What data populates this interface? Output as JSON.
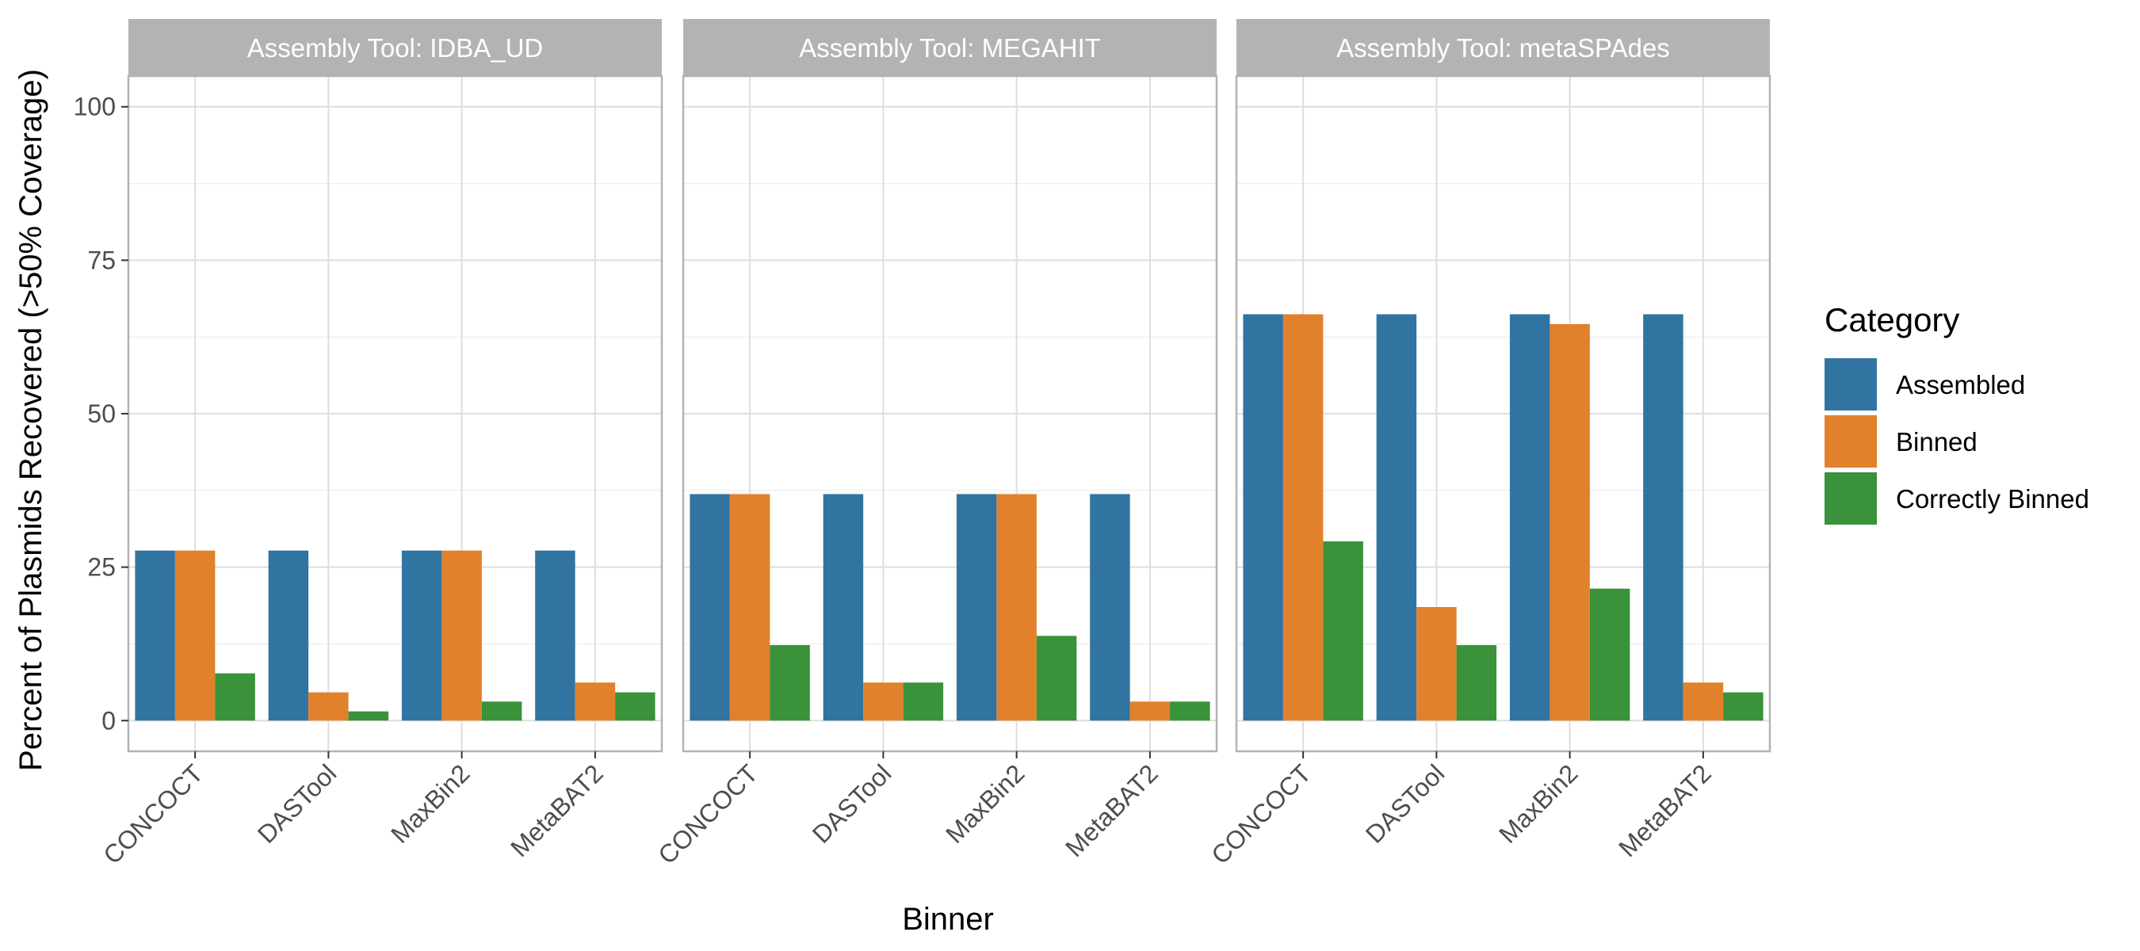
{
  "chart_data": {
    "type": "bar",
    "xlabel": "Binner",
    "ylabel": "Percent of Plasmids Recovered (>50% Coverage)",
    "ylim": [
      -5,
      105
    ],
    "yticks": [
      0,
      25,
      50,
      75,
      100
    ],
    "categories": [
      "CONCOCT",
      "DASTool",
      "MaxBin2",
      "MetaBAT2"
    ],
    "grid": true,
    "legend": {
      "title": "Category",
      "placement": "right",
      "entries": [
        "Assembled",
        "Binned",
        "Correctly Binned"
      ]
    },
    "colors": {
      "Assembled": "#3174a1",
      "Binned": "#e1812c",
      "Correctly Binned": "#3a923a",
      "strip": "#b3b3b3",
      "grid": "#dedede",
      "panel_border": "#b3b3b3"
    },
    "facets": [
      {
        "label": "Assembly Tool: IDBA_UD",
        "series": [
          {
            "name": "Assembled",
            "values": [
              27.7,
              27.7,
              27.7,
              27.7
            ]
          },
          {
            "name": "Binned",
            "values": [
              27.7,
              4.6,
              27.7,
              6.2
            ]
          },
          {
            "name": "Correctly Binned",
            "values": [
              7.7,
              1.5,
              3.1,
              4.6
            ]
          }
        ]
      },
      {
        "label": "Assembly Tool: MEGAHIT",
        "series": [
          {
            "name": "Assembled",
            "values": [
              36.9,
              36.9,
              36.9,
              36.9
            ]
          },
          {
            "name": "Binned",
            "values": [
              36.9,
              6.2,
              36.9,
              3.1
            ]
          },
          {
            "name": "Correctly Binned",
            "values": [
              12.3,
              6.2,
              13.8,
              3.1
            ]
          }
        ]
      },
      {
        "label": "Assembly Tool: metaSPAdes",
        "series": [
          {
            "name": "Assembled",
            "values": [
              66.2,
              66.2,
              66.2,
              66.2
            ]
          },
          {
            "name": "Binned",
            "values": [
              66.2,
              18.5,
              64.6,
              6.2
            ]
          },
          {
            "name": "Correctly Binned",
            "values": [
              29.2,
              12.3,
              21.5,
              4.6
            ]
          }
        ]
      }
    ]
  }
}
